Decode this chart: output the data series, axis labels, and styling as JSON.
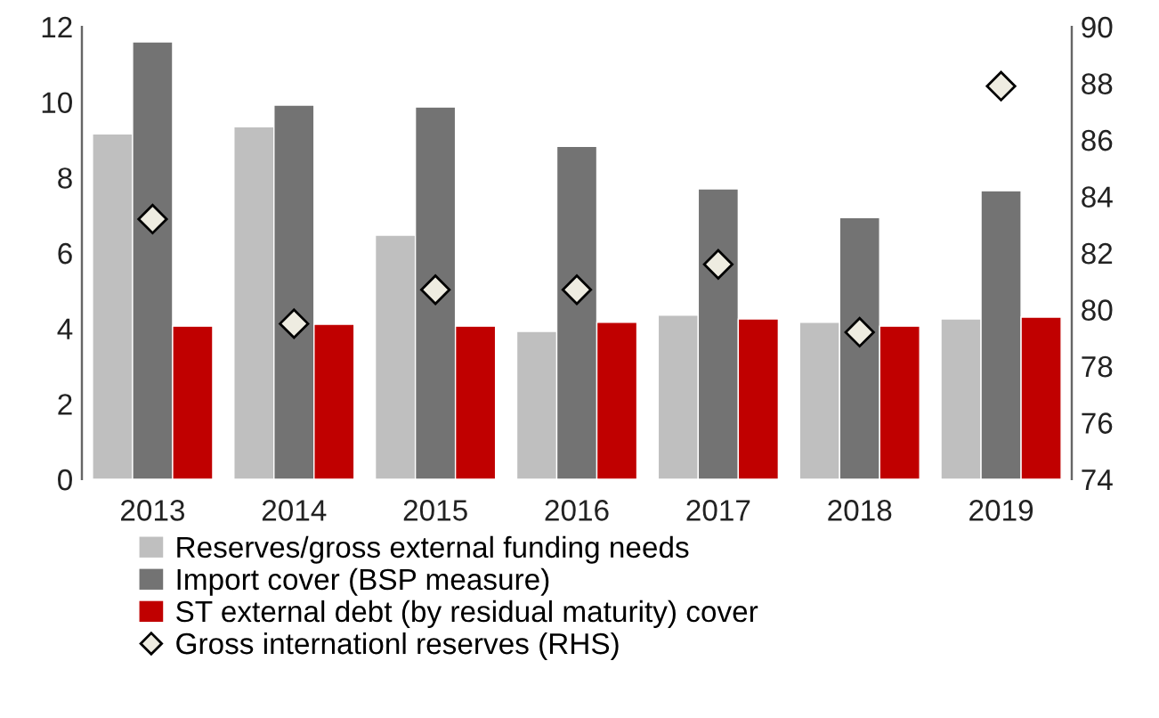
{
  "chart_data": {
    "type": "bar",
    "categories": [
      "2013",
      "2014",
      "2015",
      "2016",
      "2017",
      "2018",
      "2019"
    ],
    "series": [
      {
        "name": "Reserves/gross external funding needs",
        "color": "#bfbfbf",
        "values": [
          9.16,
          9.35,
          6.47,
          3.92,
          4.35,
          4.16,
          4.25
        ]
      },
      {
        "name": "Import cover (BSP measure)",
        "color": "#737373",
        "values": [
          11.6,
          9.92,
          9.87,
          8.83,
          7.7,
          6.94,
          7.65
        ]
      },
      {
        "name": "ST external debt (by residual maturity) cover",
        "color": "#c00000",
        "values": [
          4.06,
          4.11,
          4.06,
          4.16,
          4.25,
          4.06,
          4.3
        ]
      },
      {
        "name": "Gross internationl reserves (RHS)",
        "type": "scatter",
        "axis": "y2",
        "marker": "diamond",
        "color": "#eeece1",
        "values": [
          83.2,
          79.5,
          80.7,
          80.7,
          81.6,
          79.2,
          87.9
        ]
      }
    ],
    "ylim": [
      0,
      12
    ],
    "yticks": [
      0,
      2,
      4,
      6,
      8,
      10,
      12
    ],
    "y2lim": [
      74,
      90
    ],
    "y2ticks": [
      74,
      76,
      78,
      80,
      82,
      84,
      86,
      88,
      90
    ],
    "grid": false,
    "legend": "bottom"
  }
}
